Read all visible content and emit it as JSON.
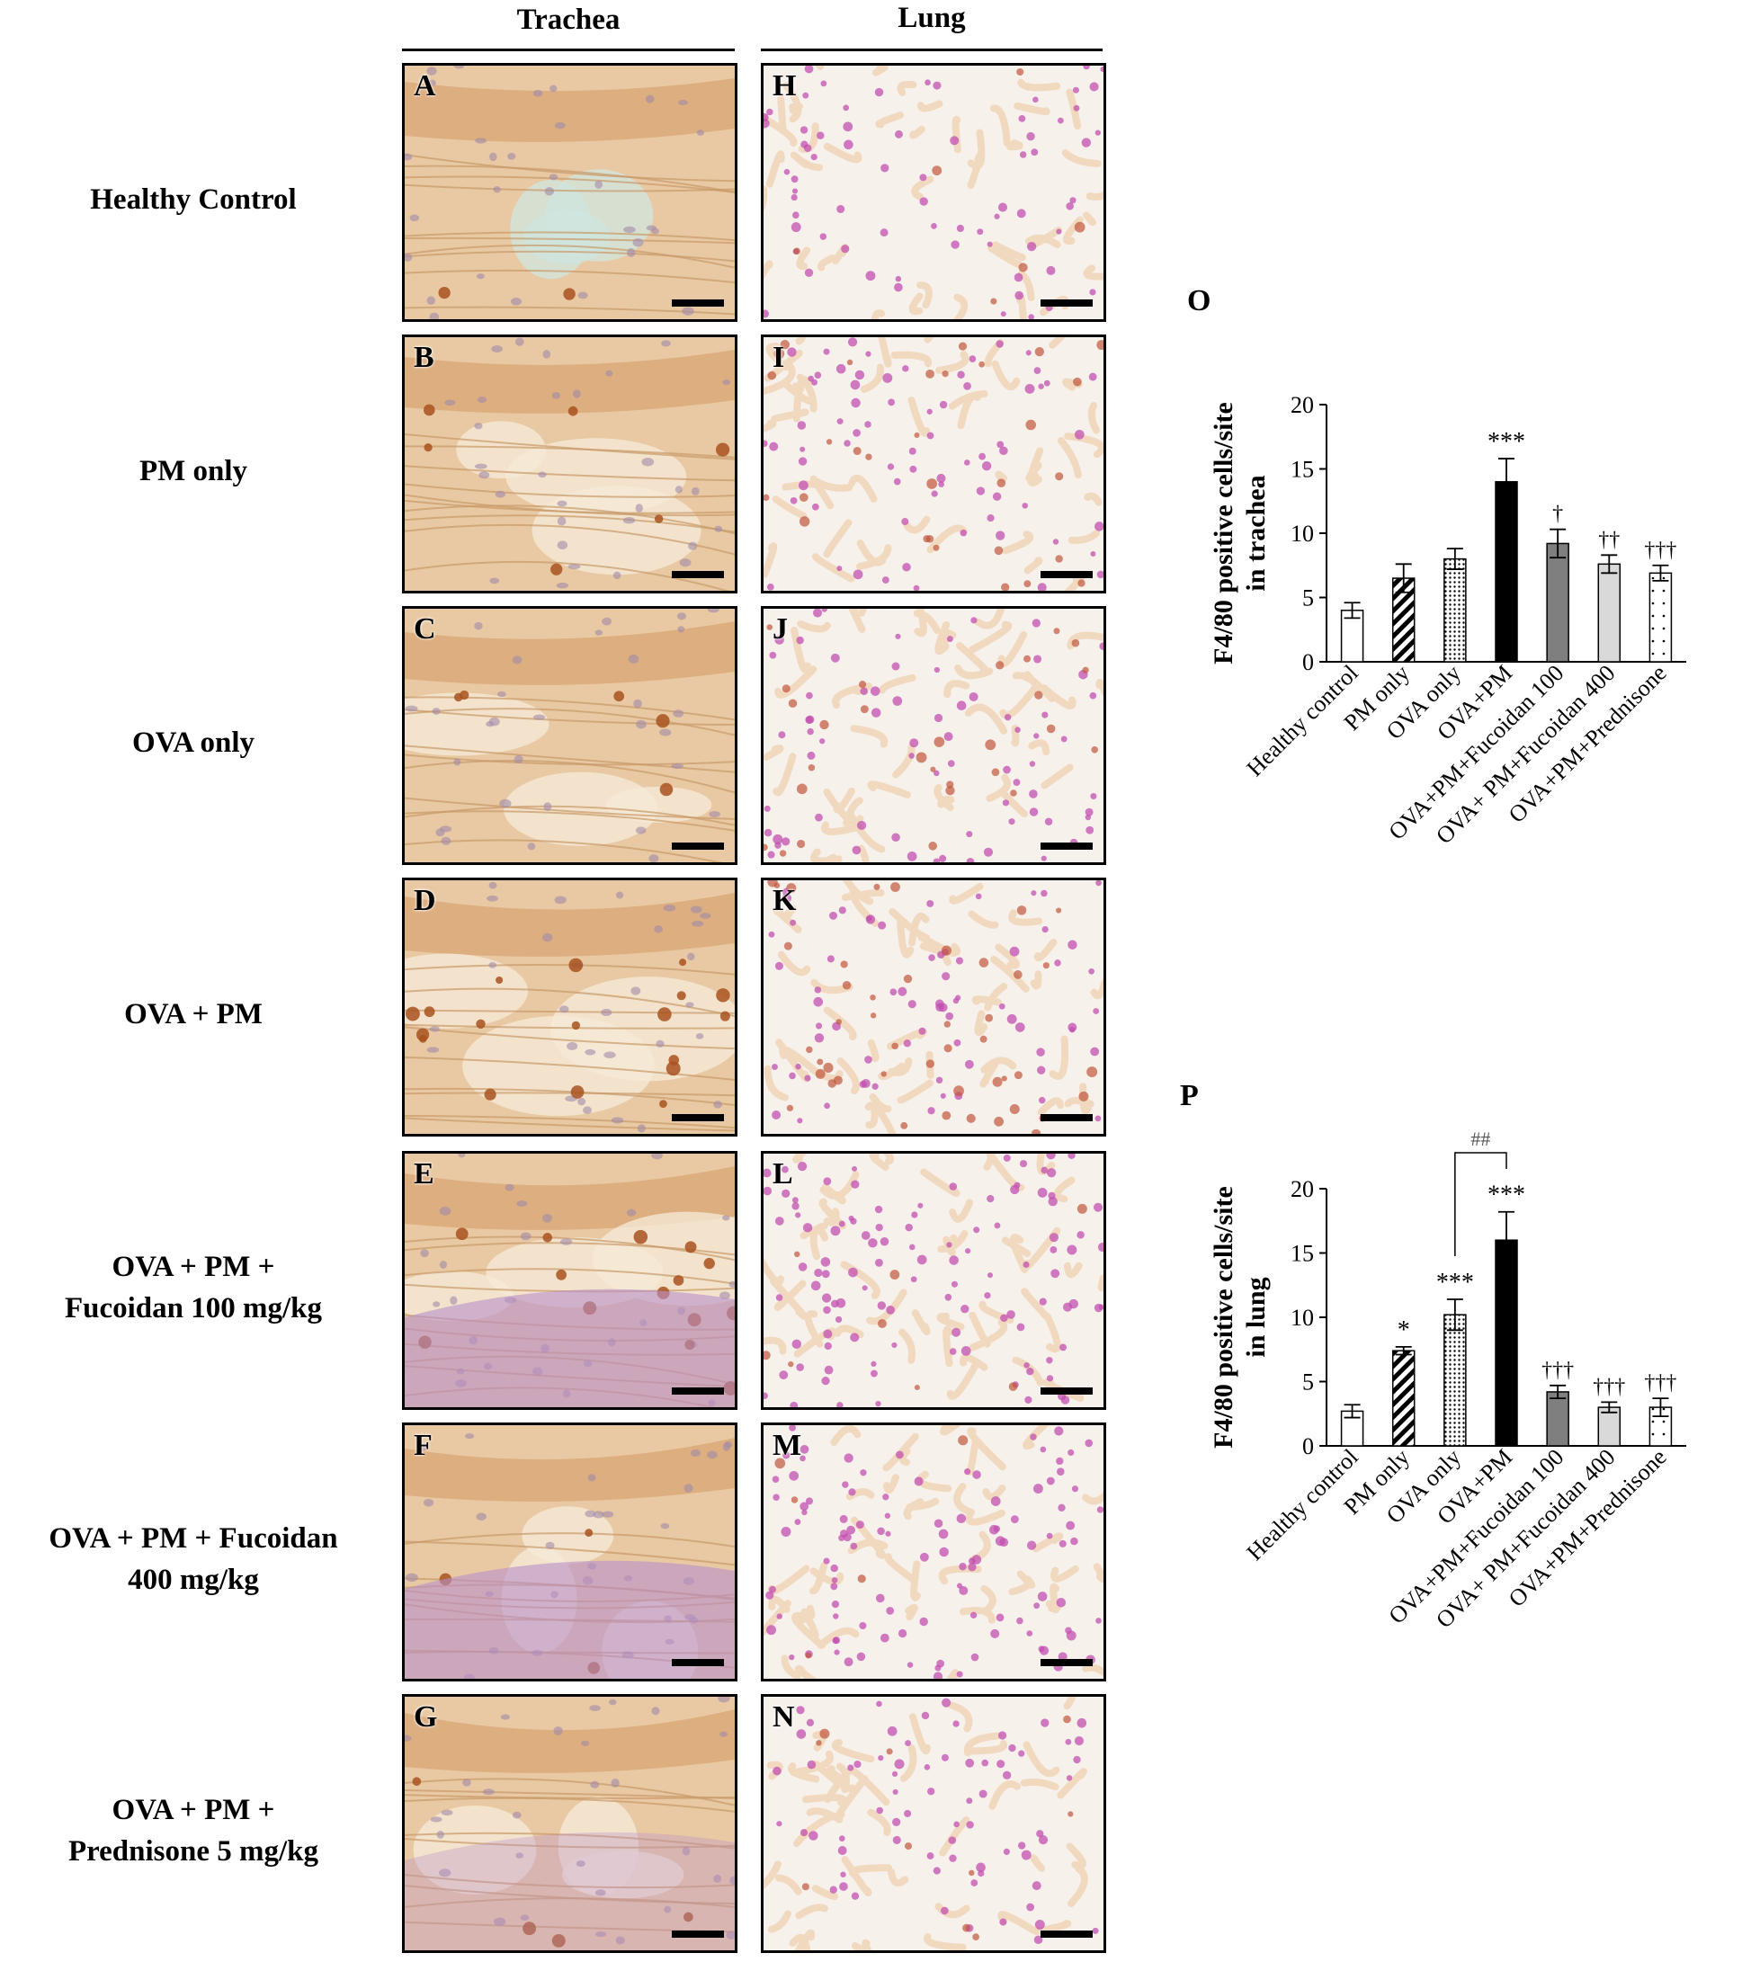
{
  "columns": {
    "trachea": "Trachea",
    "lung": "Lung"
  },
  "rows": [
    {
      "label_lines": [
        "Healthy Control"
      ],
      "trachea": "A",
      "lung": "H"
    },
    {
      "label_lines": [
        "PM only"
      ],
      "trachea": "B",
      "lung": "I"
    },
    {
      "label_lines": [
        "OVA only"
      ],
      "trachea": "C",
      "lung": "J"
    },
    {
      "label_lines": [
        "OVA + PM"
      ],
      "trachea": "D",
      "lung": "K"
    },
    {
      "label_lines": [
        "OVA + PM +",
        "Fucoidan 100 mg/kg"
      ],
      "trachea": "E",
      "lung": "L"
    },
    {
      "label_lines": [
        "OVA + PM +  Fucoidan",
        "400 mg/kg"
      ],
      "trachea": "F",
      "lung": "M"
    },
    {
      "label_lines": [
        "OVA + PM +",
        "Prednisone 5 mg/kg"
      ],
      "trachea": "G",
      "lung": "N"
    }
  ],
  "colors": {
    "trachea_tissue": "#e9c9a3",
    "trachea_fluid": "#cfe6df",
    "lung_tissue": "#f1d9c0",
    "lung_nuclei": "#c24fb0",
    "stain_brown": "#a8521f",
    "cartilage": "#b98fc9"
  },
  "chart_data": [
    {
      "panel": "O",
      "type": "bar",
      "ylabel_lines": [
        "F4/80 positive cells/site",
        "in trachea"
      ],
      "ylim": [
        0,
        20
      ],
      "yticks": [
        0,
        5,
        10,
        15,
        20
      ],
      "categories": [
        "Healthy control",
        "PM only",
        "OVA only",
        "OVA+PM",
        "OVA+PM+Fucoidan 100",
        "OVA+ PM+Fucoidan 400",
        "OVA+PM+Prednisone"
      ],
      "values": [
        4.0,
        6.5,
        8.0,
        14.0,
        9.2,
        7.6,
        6.9
      ],
      "errors": [
        0.6,
        1.1,
        0.8,
        1.8,
        1.1,
        0.7,
        0.6
      ],
      "fills": [
        "white",
        "hatch",
        "dots",
        "black",
        "darkgray",
        "lightgray",
        "sparse-dots"
      ],
      "annotations": [
        "",
        "",
        "",
        "***",
        "†",
        "††",
        "†††"
      ]
    },
    {
      "panel": "P",
      "type": "bar",
      "ylabel_lines": [
        "F4/80 positive cells/site",
        "in lung"
      ],
      "ylim": [
        0,
        20
      ],
      "yticks": [
        0,
        5,
        10,
        15,
        20
      ],
      "categories": [
        "Healthy control",
        "PM only",
        "OVA only",
        "OVA+PM",
        "OVA+PM+Fucoidan 100",
        "OVA+ PM+Fucoidan 400",
        "OVA+PM+Prednisone"
      ],
      "values": [
        2.7,
        7.4,
        10.2,
        16.0,
        4.2,
        3.0,
        3.0
      ],
      "errors": [
        0.5,
        0.3,
        1.2,
        2.2,
        0.5,
        0.4,
        0.7
      ],
      "fills": [
        "white",
        "hatch",
        "dots",
        "black",
        "darkgray",
        "lightgray",
        "sparse-dots"
      ],
      "annotations": [
        "",
        "*",
        "***",
        "***",
        "†††",
        "†††",
        "†††"
      ],
      "bracket": {
        "from": 2,
        "to": 3,
        "label": "##"
      }
    }
  ]
}
